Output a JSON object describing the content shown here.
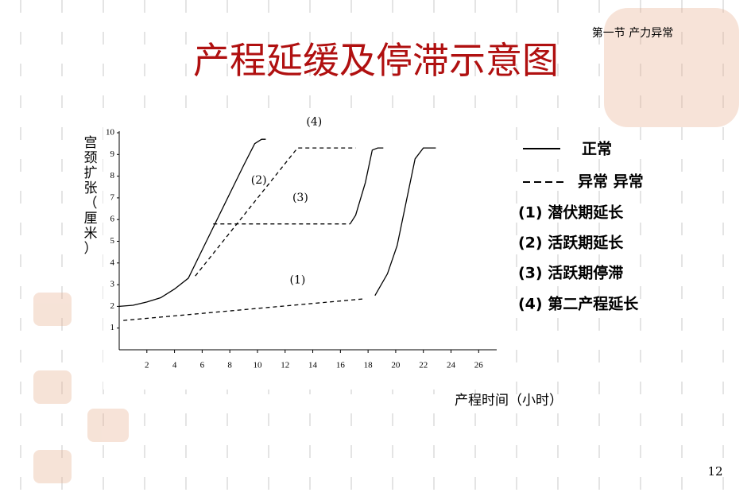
{
  "slide": {
    "section": "第一节 产力异常",
    "page": "12",
    "notes": [
      "(1) 潜伏期延长",
      "(2) 活跃期延长",
      "(3) 活跃期停滞",
      "(4) 第二产程延长"
    ]
  },
  "chart_data": {
    "type": "line",
    "title": "产程延缓及停滞示意图",
    "y_label": "宫颈扩张（厘米）",
    "x_label": "产程时间（小时）",
    "legend": [
      {
        "label": "正常",
        "style": "solid"
      },
      {
        "label": "异常 异常",
        "style": "dashed"
      }
    ],
    "xlim": [
      0,
      26.5
    ],
    "ylim": [
      0,
      10
    ],
    "xticks": [
      2,
      4,
      6,
      8,
      10,
      12,
      14,
      16,
      18,
      20,
      22,
      24,
      26
    ],
    "yticks": [
      1,
      2,
      3,
      4,
      5,
      6,
      7,
      8,
      9,
      10
    ],
    "series": [
      {
        "style": "solid",
        "color": "#000000",
        "x": [
          0,
          1,
          2,
          3,
          4,
          5,
          6,
          7,
          8,
          9,
          9.8,
          10.3,
          10.6
        ],
        "values": [
          2.0,
          2.05,
          2.2,
          2.4,
          2.8,
          3.3,
          4.6,
          5.9,
          7.2,
          8.5,
          9.5,
          9.7,
          9.7
        ]
      },
      {
        "style": "dashed",
        "color": "#000000",
        "x": [
          5.5,
          12.9,
          17.1
        ],
        "values": [
          3.4,
          9.3,
          9.3
        ]
      },
      {
        "style": "dashed",
        "color": "#000000",
        "x": [
          6.8,
          16.7
        ],
        "values": [
          5.8,
          5.8
        ]
      },
      {
        "style": "solid",
        "color": "#000000",
        "x": [
          16.7,
          17.1,
          17.8,
          18.3,
          18.7,
          19.1
        ],
        "values": [
          5.8,
          6.2,
          7.7,
          9.2,
          9.3,
          9.3
        ]
      },
      {
        "style": "dashed",
        "color": "#000000",
        "x": [
          0.3,
          17.8
        ],
        "values": [
          1.35,
          2.35
        ]
      },
      {
        "style": "solid",
        "color": "#000000",
        "x": [
          18.5,
          19.4,
          20.1,
          21.4,
          22.0,
          22.9
        ],
        "values": [
          2.5,
          3.5,
          4.8,
          8.8,
          9.3,
          9.3
        ]
      }
    ],
    "annotations": [
      {
        "text": "(4)",
        "x": 14.1,
        "y": 10.5
      },
      {
        "text": "(2)",
        "x": 10.1,
        "y": 7.8
      },
      {
        "text": "(3)",
        "x": 13.1,
        "y": 7.0
      },
      {
        "text": "(1)",
        "x": 12.9,
        "y": 3.2
      }
    ]
  }
}
